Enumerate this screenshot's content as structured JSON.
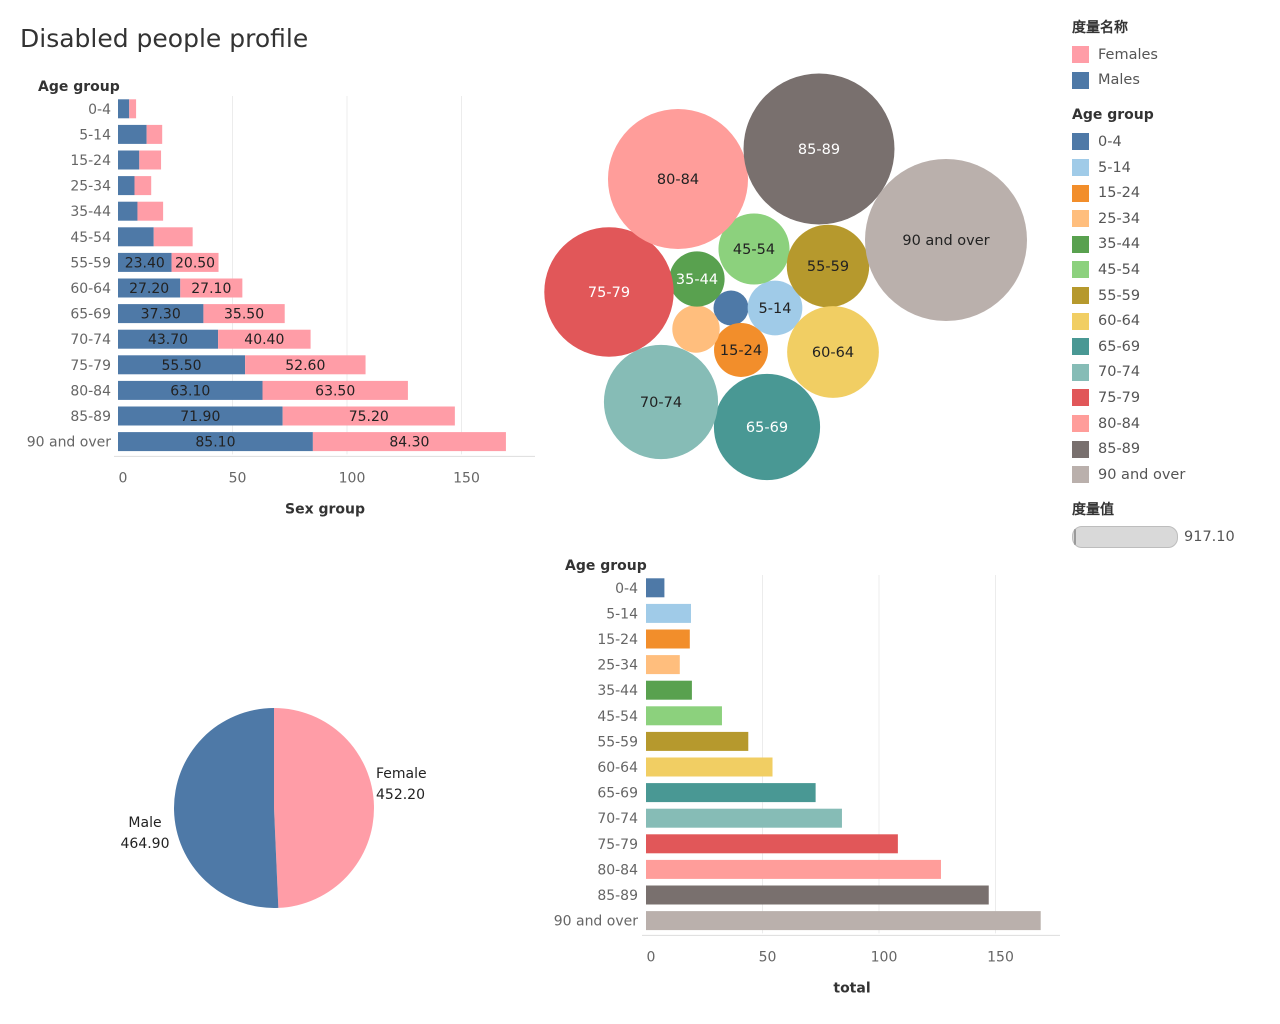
{
  "title": "Disabled people profile",
  "colors": {
    "males": "#4e79a7",
    "females": "#ff9da7",
    "age": {
      "0-4": "#4e79a7",
      "5-14": "#a0cbe8",
      "15-24": "#f28e2b",
      "25-34": "#ffbe7d",
      "35-44": "#59a14f",
      "45-54": "#8cd17d",
      "55-59": "#b6992d",
      "60-64": "#f1ce63",
      "65-69": "#499894",
      "70-74": "#86bcb6",
      "75-79": "#e15759",
      "80-84": "#ff9d9a",
      "85-89": "#79706e",
      "90 and over": "#bab0ac"
    }
  },
  "legend": {
    "measure_title": "度量名称",
    "measure_items": [
      "Females",
      "Males"
    ],
    "age_title": "Age group",
    "age_items": [
      "0-4",
      "5-14",
      "15-24",
      "25-34",
      "35-44",
      "45-54",
      "55-59",
      "60-64",
      "65-69",
      "70-74",
      "75-79",
      "80-84",
      "85-89",
      "90 and over"
    ],
    "value_title": "度量值",
    "value_max": "917.10"
  },
  "chart_data": [
    {
      "type": "bar",
      "stacked": true,
      "orientation": "horizontal",
      "category_header": "Age group",
      "xlabel": "Sex group",
      "xlim": [
        0,
        180
      ],
      "xticks": [
        0,
        50,
        100,
        150
      ],
      "categories": [
        "0-4",
        "5-14",
        "15-24",
        "25-34",
        "35-44",
        "45-54",
        "55-59",
        "60-64",
        "65-69",
        "70-74",
        "75-79",
        "80-84",
        "85-89",
        "90 and over"
      ],
      "series": [
        {
          "name": "Males",
          "values": [
            4.9,
            12.5,
            9.3,
            7.2,
            8.5,
            15.6,
            23.4,
            27.2,
            37.3,
            43.7,
            55.5,
            63.1,
            71.9,
            85.1
          ],
          "labels": [
            "",
            "",
            "",
            "",
            "",
            "",
            "23.40",
            "27.20",
            "37.30",
            "43.70",
            "55.50",
            "63.10",
            "71.90",
            "85.10"
          ]
        },
        {
          "name": "Females",
          "values": [
            3.0,
            6.8,
            9.5,
            7.3,
            11.2,
            17.0,
            20.5,
            27.1,
            35.5,
            40.4,
            52.6,
            63.5,
            75.2,
            84.3
          ],
          "labels": [
            "",
            "",
            "",
            "",
            "",
            "",
            "20.50",
            "27.10",
            "35.50",
            "40.40",
            "52.60",
            "63.50",
            "75.20",
            "84.30"
          ]
        }
      ]
    },
    {
      "type": "bubble",
      "categories": [
        "0-4",
        "5-14",
        "15-24",
        "25-34",
        "35-44",
        "45-54",
        "55-59",
        "60-64",
        "65-69",
        "70-74",
        "75-79",
        "80-84",
        "85-89",
        "90 and over"
      ],
      "values": [
        7.9,
        19.3,
        18.8,
        14.5,
        19.7,
        32.6,
        43.9,
        54.3,
        72.8,
        84.1,
        108.1,
        126.6,
        147.1,
        169.4
      ],
      "labels": [
        "",
        "5-14",
        "15-24",
        "",
        "35-44",
        "45-54",
        "55-59",
        "60-64",
        "65-69",
        "70-74",
        "75-79",
        "80-84",
        "85-89",
        "90 and over"
      ]
    },
    {
      "type": "pie",
      "slices": [
        {
          "name": "Female",
          "value": 452.2,
          "label": "452.20"
        },
        {
          "name": "Male",
          "value": 464.9,
          "label": "464.90"
        }
      ]
    },
    {
      "type": "bar",
      "orientation": "horizontal",
      "category_header": "Age group",
      "xlabel": "total",
      "xlim": [
        0,
        180
      ],
      "xticks": [
        0,
        50,
        100,
        150
      ],
      "categories": [
        "0-4",
        "5-14",
        "15-24",
        "25-34",
        "35-44",
        "45-54",
        "55-59",
        "60-64",
        "65-69",
        "70-74",
        "75-79",
        "80-84",
        "85-89",
        "90 and over"
      ],
      "values": [
        7.9,
        19.3,
        18.8,
        14.5,
        19.7,
        32.6,
        43.9,
        54.3,
        72.8,
        84.1,
        108.1,
        126.6,
        147.1,
        169.4
      ]
    }
  ]
}
